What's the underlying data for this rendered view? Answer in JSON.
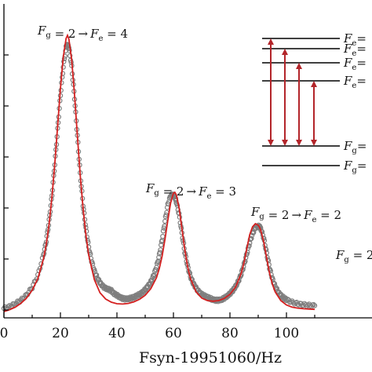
{
  "chart_data": {
    "type": "scatter",
    "title": "",
    "xlabel": "Fsyn-19951060/Hz",
    "ylabel": "",
    "xlim": [
      0,
      110
    ],
    "ylim": [
      0,
      1.0
    ],
    "grid": false,
    "x_ticks": [
      0,
      20,
      40,
      60,
      80,
      100
    ],
    "x_tick_labels": [
      "0",
      "20",
      "40",
      "60",
      "80",
      "100"
    ],
    "annotations": [
      {
        "pre": "F",
        "sub1": "g",
        "mid": " = 2",
        "arrow": "→",
        "F2": "F",
        "sub2": "e",
        "post": " = 4",
        "x": 22.5,
        "y": 0.89
      },
      {
        "pre": "F",
        "sub1": "g",
        "mid": " = 2",
        "arrow": "→",
        "F2": "F",
        "sub2": "e",
        "post": " = 3",
        "x": 60.5,
        "y": 0.395
      },
      {
        "pre": "F",
        "sub1": "g",
        "mid": " = 2",
        "arrow": "→",
        "F2": "F",
        "sub2": "e",
        "post": " = 2",
        "x": 90,
        "y": 0.295
      }
    ],
    "inset_level_labels": [
      {
        "F": "F",
        "sub": "e",
        "post": "="
      },
      {
        "F": "F",
        "sub": "e",
        "post": "="
      },
      {
        "F": "F",
        "sub": "e",
        "post": "="
      },
      {
        "F": "F",
        "sub": "e",
        "post": "="
      },
      {
        "F": "F",
        "sub": "g",
        "post": "="
      },
      {
        "F": "F",
        "sub": "g",
        "post": "="
      }
    ],
    "edge_label": {
      "F": "F",
      "sub": "g",
      "post": " = 2"
    },
    "series": [
      {
        "style": "data-points",
        "color": "#7f7f7f",
        "x": [
          0,
          2,
          4,
          6,
          8,
          10,
          12,
          14,
          15,
          16,
          17,
          18,
          19,
          20,
          21,
          22,
          22.5,
          23,
          24,
          25,
          26,
          27,
          28,
          29,
          30,
          31,
          32,
          33,
          34,
          35,
          36,
          37,
          38,
          39,
          40,
          41,
          42,
          43,
          44,
          45,
          46,
          47,
          48,
          49,
          50,
          51,
          52,
          53,
          54,
          55,
          56,
          57,
          58,
          59,
          60,
          60.5,
          61,
          62,
          63,
          64,
          65,
          66,
          67,
          68,
          69,
          70,
          71,
          72,
          73,
          74,
          75,
          76,
          77,
          78,
          79,
          80,
          81,
          82,
          83,
          84,
          85,
          86,
          87,
          88,
          89,
          90,
          90.5,
          91,
          92,
          93,
          94,
          95,
          96,
          97,
          98,
          99,
          100,
          102,
          104,
          106,
          108,
          110
        ],
        "y": [
          0.03,
          0.036,
          0.045,
          0.056,
          0.073,
          0.097,
          0.135,
          0.2,
          0.245,
          0.31,
          0.39,
          0.49,
          0.6,
          0.71,
          0.8,
          0.862,
          0.87,
          0.86,
          0.8,
          0.7,
          0.58,
          0.46,
          0.36,
          0.285,
          0.225,
          0.182,
          0.15,
          0.128,
          0.112,
          0.101,
          0.094,
          0.091,
          0.087,
          0.077,
          0.072,
          0.066,
          0.062,
          0.06,
          0.061,
          0.063,
          0.066,
          0.07,
          0.075,
          0.081,
          0.09,
          0.101,
          0.115,
          0.135,
          0.162,
          0.2,
          0.25,
          0.308,
          0.36,
          0.39,
          0.392,
          0.385,
          0.37,
          0.33,
          0.27,
          0.21,
          0.165,
          0.132,
          0.11,
          0.095,
          0.083,
          0.075,
          0.07,
          0.066,
          0.062,
          0.058,
          0.056,
          0.056,
          0.058,
          0.063,
          0.069,
          0.077,
          0.087,
          0.1,
          0.117,
          0.14,
          0.17,
          0.205,
          0.24,
          0.268,
          0.287,
          0.292,
          0.29,
          0.282,
          0.252,
          0.205,
          0.16,
          0.125,
          0.1,
          0.083,
          0.072,
          0.064,
          0.058,
          0.05,
          0.045,
          0.042,
          0.04,
          0.039
        ]
      },
      {
        "style": "fit-line",
        "color": "#d42020",
        "x": [
          0,
          2,
          4,
          6,
          8,
          10,
          12,
          14,
          15,
          16,
          17,
          18,
          19,
          20,
          21,
          22,
          22.5,
          23,
          24,
          25,
          26,
          27,
          28,
          29,
          30,
          32,
          34,
          36,
          38,
          40,
          42,
          44,
          46,
          48,
          50,
          52,
          54,
          55,
          56,
          57,
          58,
          59,
          60,
          60.5,
          61,
          62,
          63,
          64,
          65,
          66,
          68,
          70,
          72,
          74,
          76,
          78,
          80,
          82,
          84,
          85,
          86,
          87,
          88,
          89,
          90,
          90.5,
          91,
          92,
          93,
          94,
          95,
          96,
          98,
          100,
          102,
          104,
          106,
          108,
          110
        ],
        "y": [
          0.02,
          0.026,
          0.034,
          0.046,
          0.063,
          0.088,
          0.125,
          0.188,
          0.235,
          0.3,
          0.385,
          0.49,
          0.61,
          0.73,
          0.83,
          0.89,
          0.9,
          0.888,
          0.82,
          0.71,
          0.58,
          0.455,
          0.35,
          0.265,
          0.2,
          0.122,
          0.08,
          0.06,
          0.05,
          0.045,
          0.044,
          0.046,
          0.051,
          0.059,
          0.072,
          0.093,
          0.128,
          0.157,
          0.197,
          0.25,
          0.31,
          0.366,
          0.397,
          0.4,
          0.392,
          0.35,
          0.285,
          0.218,
          0.164,
          0.126,
          0.083,
          0.063,
          0.055,
          0.053,
          0.055,
          0.062,
          0.075,
          0.098,
          0.142,
          0.177,
          0.222,
          0.265,
          0.29,
          0.3,
          0.295,
          0.288,
          0.276,
          0.24,
          0.19,
          0.143,
          0.108,
          0.083,
          0.055,
          0.041,
          0.034,
          0.031,
          0.029,
          0.028,
          0.027
        ]
      }
    ]
  },
  "colors": {
    "data_points": "#7f7f7f",
    "fit_line": "#d42020",
    "inset_arrows": "#b3252a",
    "axis": "#000000"
  }
}
